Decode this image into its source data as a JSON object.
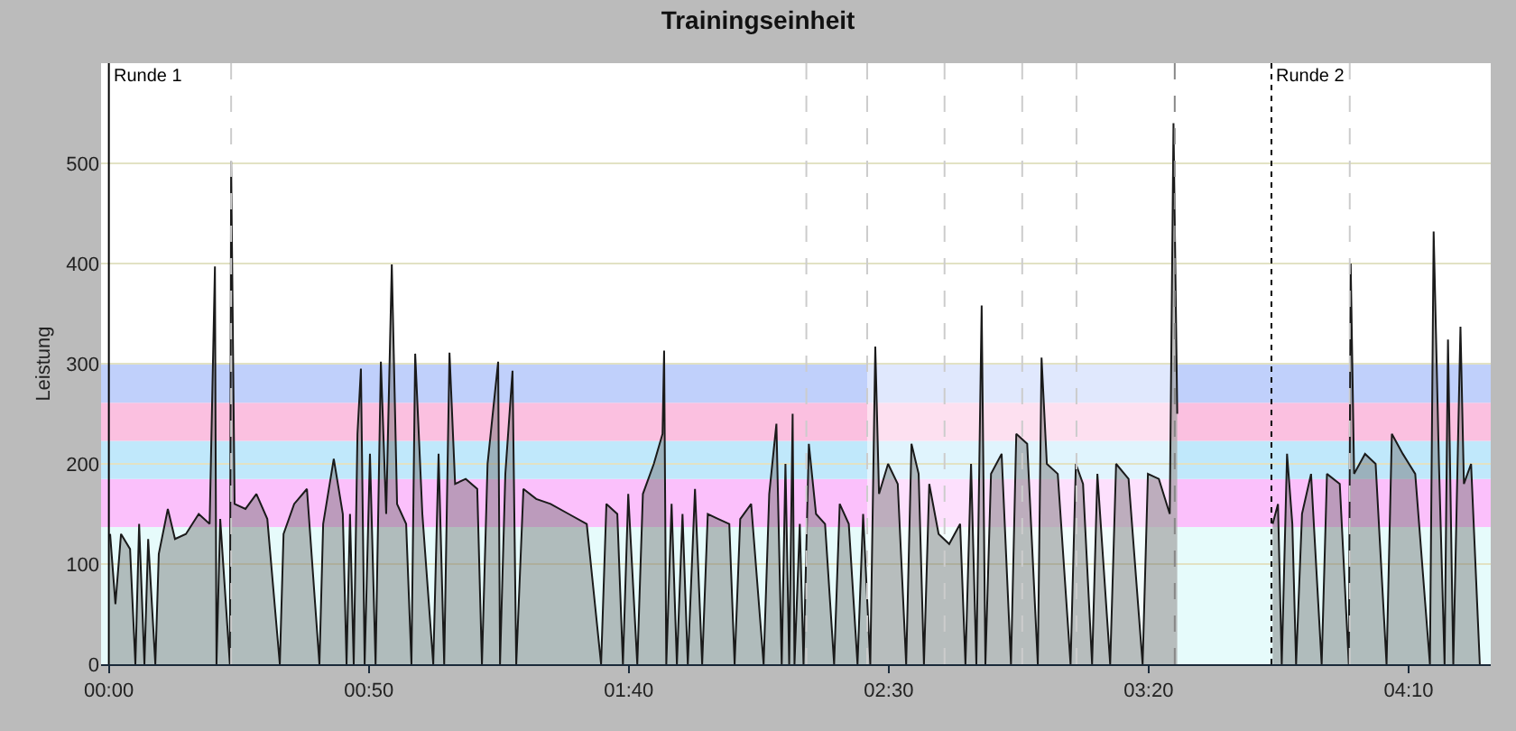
{
  "chart_data": {
    "type": "area",
    "title": "Trainingseinheit",
    "ylabel": "Leistung",
    "xlim": [
      -0.025,
      4.43
    ],
    "ylim": [
      0,
      600
    ],
    "xticks": [
      {
        "value": 0,
        "label": "00:00"
      },
      {
        "value": 0.8333,
        "label": "00:50"
      },
      {
        "value": 1.6667,
        "label": "01:40"
      },
      {
        "value": 2.5,
        "label": "02:30"
      },
      {
        "value": 3.3333,
        "label": "03:20"
      },
      {
        "value": 4.1667,
        "label": "04:10"
      }
    ],
    "yticks": [
      0,
      100,
      200,
      300,
      400,
      500
    ],
    "grid": "y",
    "bands": [
      {
        "axis": "y",
        "from": 0,
        "to": 137,
        "color": "#e6fbfb"
      },
      {
        "axis": "y",
        "from": 137,
        "to": 185,
        "color": "#fbc0fb"
      },
      {
        "axis": "y",
        "from": 185,
        "to": 223,
        "color": "#c0e8fb"
      },
      {
        "axis": "y",
        "from": 223,
        "to": 261,
        "color": "#fbc0e0"
      },
      {
        "axis": "y",
        "from": 261,
        "to": 300,
        "color": "#c0d0fb"
      },
      {
        "axis": "x",
        "from": 2.431,
        "to": 3.425,
        "color": "#ffffff"
      }
    ],
    "ref_lines": [
      {
        "axis": "x",
        "value": 0,
        "label": "Runde 1",
        "color": "#000000",
        "line_style": "solid"
      },
      {
        "axis": "x",
        "value": 0.392,
        "color": "#cccccc",
        "line_style": "dashed"
      },
      {
        "axis": "x",
        "value": 2.236,
        "color": "#cccccc",
        "line_style": "dashed"
      },
      {
        "axis": "x",
        "value": 2.431,
        "color": "#cccccc",
        "line_style": "dashed"
      },
      {
        "axis": "x",
        "value": 2.679,
        "color": "#cccccc",
        "line_style": "dashed"
      },
      {
        "axis": "x",
        "value": 2.928,
        "color": "#cccccc",
        "line_style": "dashed"
      },
      {
        "axis": "x",
        "value": 3.102,
        "color": "#cccccc",
        "line_style": "dashed"
      },
      {
        "axis": "x",
        "value": 3.417,
        "color": "#888888",
        "line_style": "dashed"
      },
      {
        "axis": "x",
        "value": 3.727,
        "label": "Runde 2",
        "color": "#000000",
        "line_style": "dotted"
      },
      {
        "axis": "x",
        "value": 3.978,
        "color": "#cccccc",
        "line_style": "dashed"
      }
    ],
    "series": [
      {
        "color": "#1a1a1a",
        "x": [
          0.004,
          0.021,
          0.039,
          0.068,
          0.085,
          0.097,
          0.114,
          0.126,
          0.149,
          0.16,
          0.189,
          0.212,
          0.247,
          0.288,
          0.323,
          0.34,
          0.345,
          0.357,
          0.388,
          0.392,
          0.403,
          0.438,
          0.473,
          0.508,
          0.548,
          0.56,
          0.594,
          0.635,
          0.675,
          0.687,
          0.721,
          0.75,
          0.762,
          0.773,
          0.785,
          0.797,
          0.808,
          0.82,
          0.837,
          0.855,
          0.872,
          0.889,
          0.907,
          0.924,
          0.953,
          0.97,
          0.982,
          1.005,
          1.04,
          1.057,
          1.075,
          1.092,
          1.11,
          1.144,
          1.181,
          1.196,
          1.214,
          1.248,
          1.254,
          1.271,
          1.294,
          1.306,
          1.329,
          1.37,
          1.416,
          1.474,
          1.532,
          1.578,
          1.595,
          1.63,
          1.648,
          1.665,
          1.694,
          1.712,
          1.747,
          1.775,
          1.78,
          1.787,
          1.804,
          1.821,
          1.839,
          1.856,
          1.879,
          1.902,
          1.92,
          1.954,
          1.989,
          2.006,
          2.024,
          2.059,
          2.099,
          2.117,
          2.14,
          2.157,
          2.169,
          2.181,
          2.192,
          2.198,
          2.215,
          2.227,
          2.244,
          2.267,
          2.296,
          2.325,
          2.343,
          2.372,
          2.4,
          2.418,
          2.441,
          2.457,
          2.469,
          2.498,
          2.529,
          2.556,
          2.573,
          2.596,
          2.613,
          2.63,
          2.66,
          2.694,
          2.729,
          2.746,
          2.764,
          2.781,
          2.798,
          2.81,
          2.828,
          2.862,
          2.892,
          2.909,
          2.944,
          2.978,
          2.99,
          3.007,
          3.042,
          3.083,
          3.1,
          3.123,
          3.152,
          3.169,
          3.21,
          3.229,
          3.269,
          3.314,
          3.331,
          3.366,
          3.401,
          3.413,
          3.425,
          3.5,
          3.731,
          3.748,
          3.76,
          3.777,
          3.794,
          3.806,
          3.825,
          3.854,
          3.888,
          3.905,
          3.946,
          3.975,
          3.981,
          3.992,
          4.027,
          4.061,
          4.096,
          4.113,
          4.148,
          4.188,
          4.235,
          4.247,
          4.264,
          4.282,
          4.293,
          4.31,
          4.333,
          4.344,
          4.367,
          4.395
        ],
        "values": [
          130,
          60,
          130,
          115,
          0,
          140,
          0,
          125,
          0,
          110,
          155,
          125,
          130,
          150,
          140,
          397,
          0,
          145,
          0,
          502,
          160,
          155,
          170,
          145,
          0,
          130,
          160,
          175,
          0,
          140,
          205,
          150,
          0,
          150,
          0,
          230,
          295,
          0,
          210,
          0,
          302,
          150,
          399,
          160,
          140,
          0,
          310,
          150,
          0,
          210,
          0,
          311,
          180,
          185,
          175,
          0,
          200,
          302,
          0,
          190,
          293,
          0,
          175,
          165,
          160,
          150,
          140,
          0,
          160,
          150,
          0,
          170,
          0,
          170,
          200,
          230,
          313,
          0,
          160,
          0,
          150,
          0,
          175,
          0,
          150,
          145,
          140,
          0,
          145,
          160,
          0,
          170,
          240,
          0,
          200,
          0,
          250,
          0,
          140,
          0,
          220,
          150,
          140,
          0,
          160,
          140,
          0,
          150,
          0,
          317,
          170,
          200,
          180,
          0,
          220,
          190,
          0,
          180,
          130,
          120,
          140,
          0,
          200,
          0,
          358,
          0,
          190,
          210,
          0,
          230,
          220,
          0,
          306,
          200,
          190,
          0,
          200,
          180,
          0,
          190,
          0,
          200,
          185,
          0,
          190,
          185,
          150,
          540,
          250,
          null,
          140,
          160,
          0,
          210,
          140,
          0,
          150,
          190,
          0,
          190,
          180,
          0,
          400,
          190,
          210,
          200,
          0,
          230,
          210,
          190,
          0,
          432,
          200,
          0,
          324,
          0,
          337,
          180,
          200,
          0
        ]
      }
    ]
  }
}
